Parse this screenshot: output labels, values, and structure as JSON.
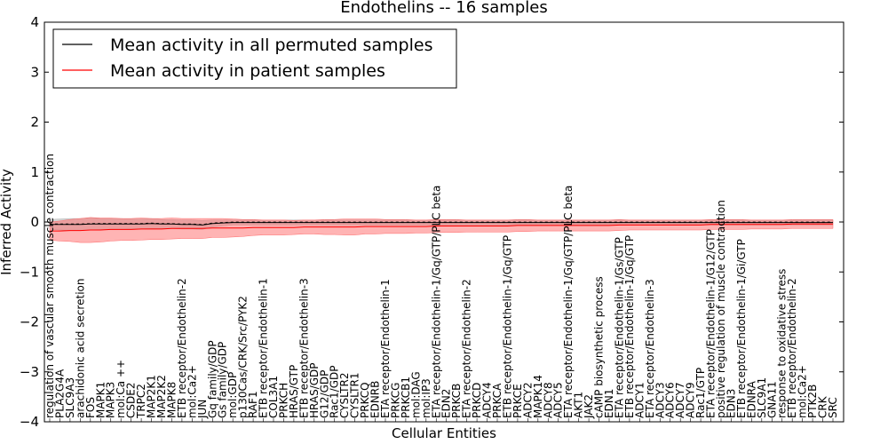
{
  "chart_data": {
    "type": "line",
    "title": "Endothelins -- 16 samples",
    "xlabel": "Cellular Entities",
    "ylabel": "Inferred Activity",
    "ylim": [
      -4,
      4
    ],
    "yticks": [
      "4",
      "3",
      "2",
      "1",
      "0",
      "−1",
      "−2",
      "−3",
      "−4"
    ],
    "legend_position": "top-left",
    "categories": [
      "regulation of vascular smooth muscle contraction",
      "PLA2G4A",
      "SLC9A3",
      "arachidonic acid secretion",
      "FOS",
      "MAPK1",
      "MAPK3",
      "mol:Ca ++",
      "CSDE2",
      "TRPC2",
      "MAP2K1",
      "MAP2K2",
      "MAPK8",
      "ETB receptor/Endothelin-2",
      "mol:Ca2+",
      "JUN",
      "Gq family/GDP",
      "Gs family/GDP",
      "mol:GDP",
      "p130Cas/CRK/Src/PYK2",
      "RAF1",
      "ETB receptor/Endothelin-1",
      "COL3A1",
      "PRKCH",
      "HRAS/GTP",
      "ETB receptor/Endothelin-3",
      "HRAS/GDP",
      "G12/GDP",
      "Rac1/GDP",
      "CYSLTR2",
      "CYSLTR1",
      "PRKCQ",
      "EDNRB",
      "ETA receptor/Endothelin-1",
      "PRKCG",
      "PRKCB1",
      "mol:DAG",
      "mol:IP3",
      "ETA receptor/Endothelin-1/Gq/GTP/PLC beta",
      "EDN2",
      "PRKCB",
      "ETA receptor/Endothelin-2",
      "PRKCD",
      "ADCY4",
      "PRKCA",
      "ETB receptor/Endothelin-1/Gq/GTP",
      "PRKCE",
      "ADCY2",
      "MAPK14",
      "ADCY8",
      "ADCY5",
      "ETA receptor/Endothelin-1/Gq/GTP/PLC beta",
      "AKT1",
      "JAK2",
      "cAMP biosynthetic process",
      "EDN1",
      "ETA receptor/Endothelin-1/Gs/GTP",
      "ETB receptor/Endothelin-1/Gq/GTP",
      "ADCY1",
      "ETA receptor/Endothelin-3",
      "ADCY3",
      "ADCY6",
      "ADCY7",
      "ADCY9",
      "Rac1/GTP",
      "ETA receptor/Endothelin-1/G12/GTP",
      "positive regulation of muscle contraction",
      "EDN3",
      "ETB receptor/Endothelin-1/Gi/GTP",
      "EDNRA",
      "SLC9A1",
      "GNA11",
      "response to oxidative stress",
      "ETB receptor/Endothelin-2",
      "mol:Ca2+",
      "PTK2B",
      "CRK",
      "SRC"
    ],
    "series": [
      {
        "name": "Mean activity in all permuted samples",
        "color": "#000000",
        "band_color": "#b0b0b0",
        "values": [
          -0.05,
          -0.05,
          -0.05,
          -0.05,
          -0.04,
          -0.04,
          -0.04,
          -0.04,
          -0.04,
          -0.04,
          -0.03,
          -0.04,
          -0.04,
          -0.05,
          -0.05,
          -0.06,
          -0.03,
          -0.02,
          -0.01,
          -0.01,
          -0.01,
          -0.01,
          -0.01,
          -0.01,
          -0.01,
          -0.01,
          -0.01,
          -0.01,
          -0.01,
          -0.01,
          -0.01,
          -0.01,
          -0.01,
          -0.01,
          -0.01,
          -0.01,
          -0.01,
          -0.01,
          -0.01,
          -0.01,
          -0.01,
          -0.01,
          -0.01,
          -0.01,
          -0.01,
          -0.01,
          -0.01,
          -0.01,
          -0.01,
          -0.01,
          -0.01,
          -0.01,
          -0.01,
          -0.01,
          -0.01,
          -0.01,
          -0.01,
          -0.01,
          -0.01,
          -0.01,
          -0.01,
          -0.01,
          -0.01,
          -0.01,
          -0.01,
          -0.01,
          -0.01,
          -0.01,
          -0.01,
          -0.01,
          -0.01,
          -0.01,
          -0.01,
          -0.01,
          -0.01,
          -0.01,
          -0.01,
          -0.01
        ],
        "spread": [
          0.1,
          0.11,
          0.12,
          0.12,
          0.12,
          0.11,
          0.11,
          0.11,
          0.1,
          0.1,
          0.1,
          0.09,
          0.09,
          0.09,
          0.09,
          0.09,
          0.07,
          0.06,
          0.05,
          0.05,
          0.05,
          0.05,
          0.05,
          0.05,
          0.05,
          0.05,
          0.05,
          0.05,
          0.05,
          0.05,
          0.05,
          0.05,
          0.05,
          0.05,
          0.05,
          0.05,
          0.05,
          0.05,
          0.05,
          0.05,
          0.05,
          0.05,
          0.05,
          0.05,
          0.05,
          0.05,
          0.05,
          0.05,
          0.05,
          0.05,
          0.05,
          0.05,
          0.05,
          0.05,
          0.05,
          0.05,
          0.05,
          0.05,
          0.05,
          0.05,
          0.05,
          0.05,
          0.05,
          0.05,
          0.05,
          0.05,
          0.05,
          0.05,
          0.05,
          0.05,
          0.05,
          0.05,
          0.05,
          0.05,
          0.05,
          0.05,
          0.05,
          0.05
        ]
      },
      {
        "name": "Mean activity in patient samples",
        "color": "#ff0000",
        "band_color": "#ff6a6a",
        "values": [
          -0.18,
          -0.18,
          -0.17,
          -0.17,
          -0.16,
          -0.16,
          -0.15,
          -0.15,
          -0.15,
          -0.14,
          -0.14,
          -0.14,
          -0.13,
          -0.13,
          -0.13,
          -0.13,
          -0.12,
          -0.12,
          -0.12,
          -0.12,
          -0.11,
          -0.11,
          -0.11,
          -0.11,
          -0.11,
          -0.1,
          -0.1,
          -0.1,
          -0.1,
          -0.1,
          -0.1,
          -0.09,
          -0.09,
          -0.09,
          -0.09,
          -0.09,
          -0.09,
          -0.09,
          -0.08,
          -0.08,
          -0.08,
          -0.08,
          -0.08,
          -0.08,
          -0.08,
          -0.08,
          -0.07,
          -0.07,
          -0.07,
          -0.07,
          -0.07,
          -0.07,
          -0.07,
          -0.07,
          -0.07,
          -0.07,
          -0.06,
          -0.06,
          -0.06,
          -0.06,
          -0.06,
          -0.06,
          -0.06,
          -0.06,
          -0.06,
          -0.05,
          -0.05,
          -0.05,
          -0.05,
          -0.05,
          -0.05,
          -0.05,
          -0.05,
          -0.04,
          -0.04,
          -0.04,
          -0.04,
          -0.04
        ],
        "spread": [
          0.18,
          0.2,
          0.22,
          0.24,
          0.25,
          0.24,
          0.23,
          0.22,
          0.22,
          0.22,
          0.21,
          0.21,
          0.21,
          0.2,
          0.2,
          0.2,
          0.19,
          0.19,
          0.18,
          0.17,
          0.16,
          0.15,
          0.15,
          0.15,
          0.14,
          0.14,
          0.14,
          0.15,
          0.15,
          0.16,
          0.16,
          0.15,
          0.15,
          0.14,
          0.14,
          0.14,
          0.13,
          0.13,
          0.13,
          0.13,
          0.13,
          0.12,
          0.12,
          0.12,
          0.12,
          0.12,
          0.12,
          0.12,
          0.11,
          0.11,
          0.11,
          0.11,
          0.11,
          0.11,
          0.11,
          0.11,
          0.11,
          0.1,
          0.1,
          0.1,
          0.1,
          0.1,
          0.1,
          0.1,
          0.1,
          0.1,
          0.1,
          0.1,
          0.1,
          0.09,
          0.09,
          0.09,
          0.09,
          0.09,
          0.09,
          0.09,
          0.09,
          0.09
        ]
      }
    ]
  }
}
